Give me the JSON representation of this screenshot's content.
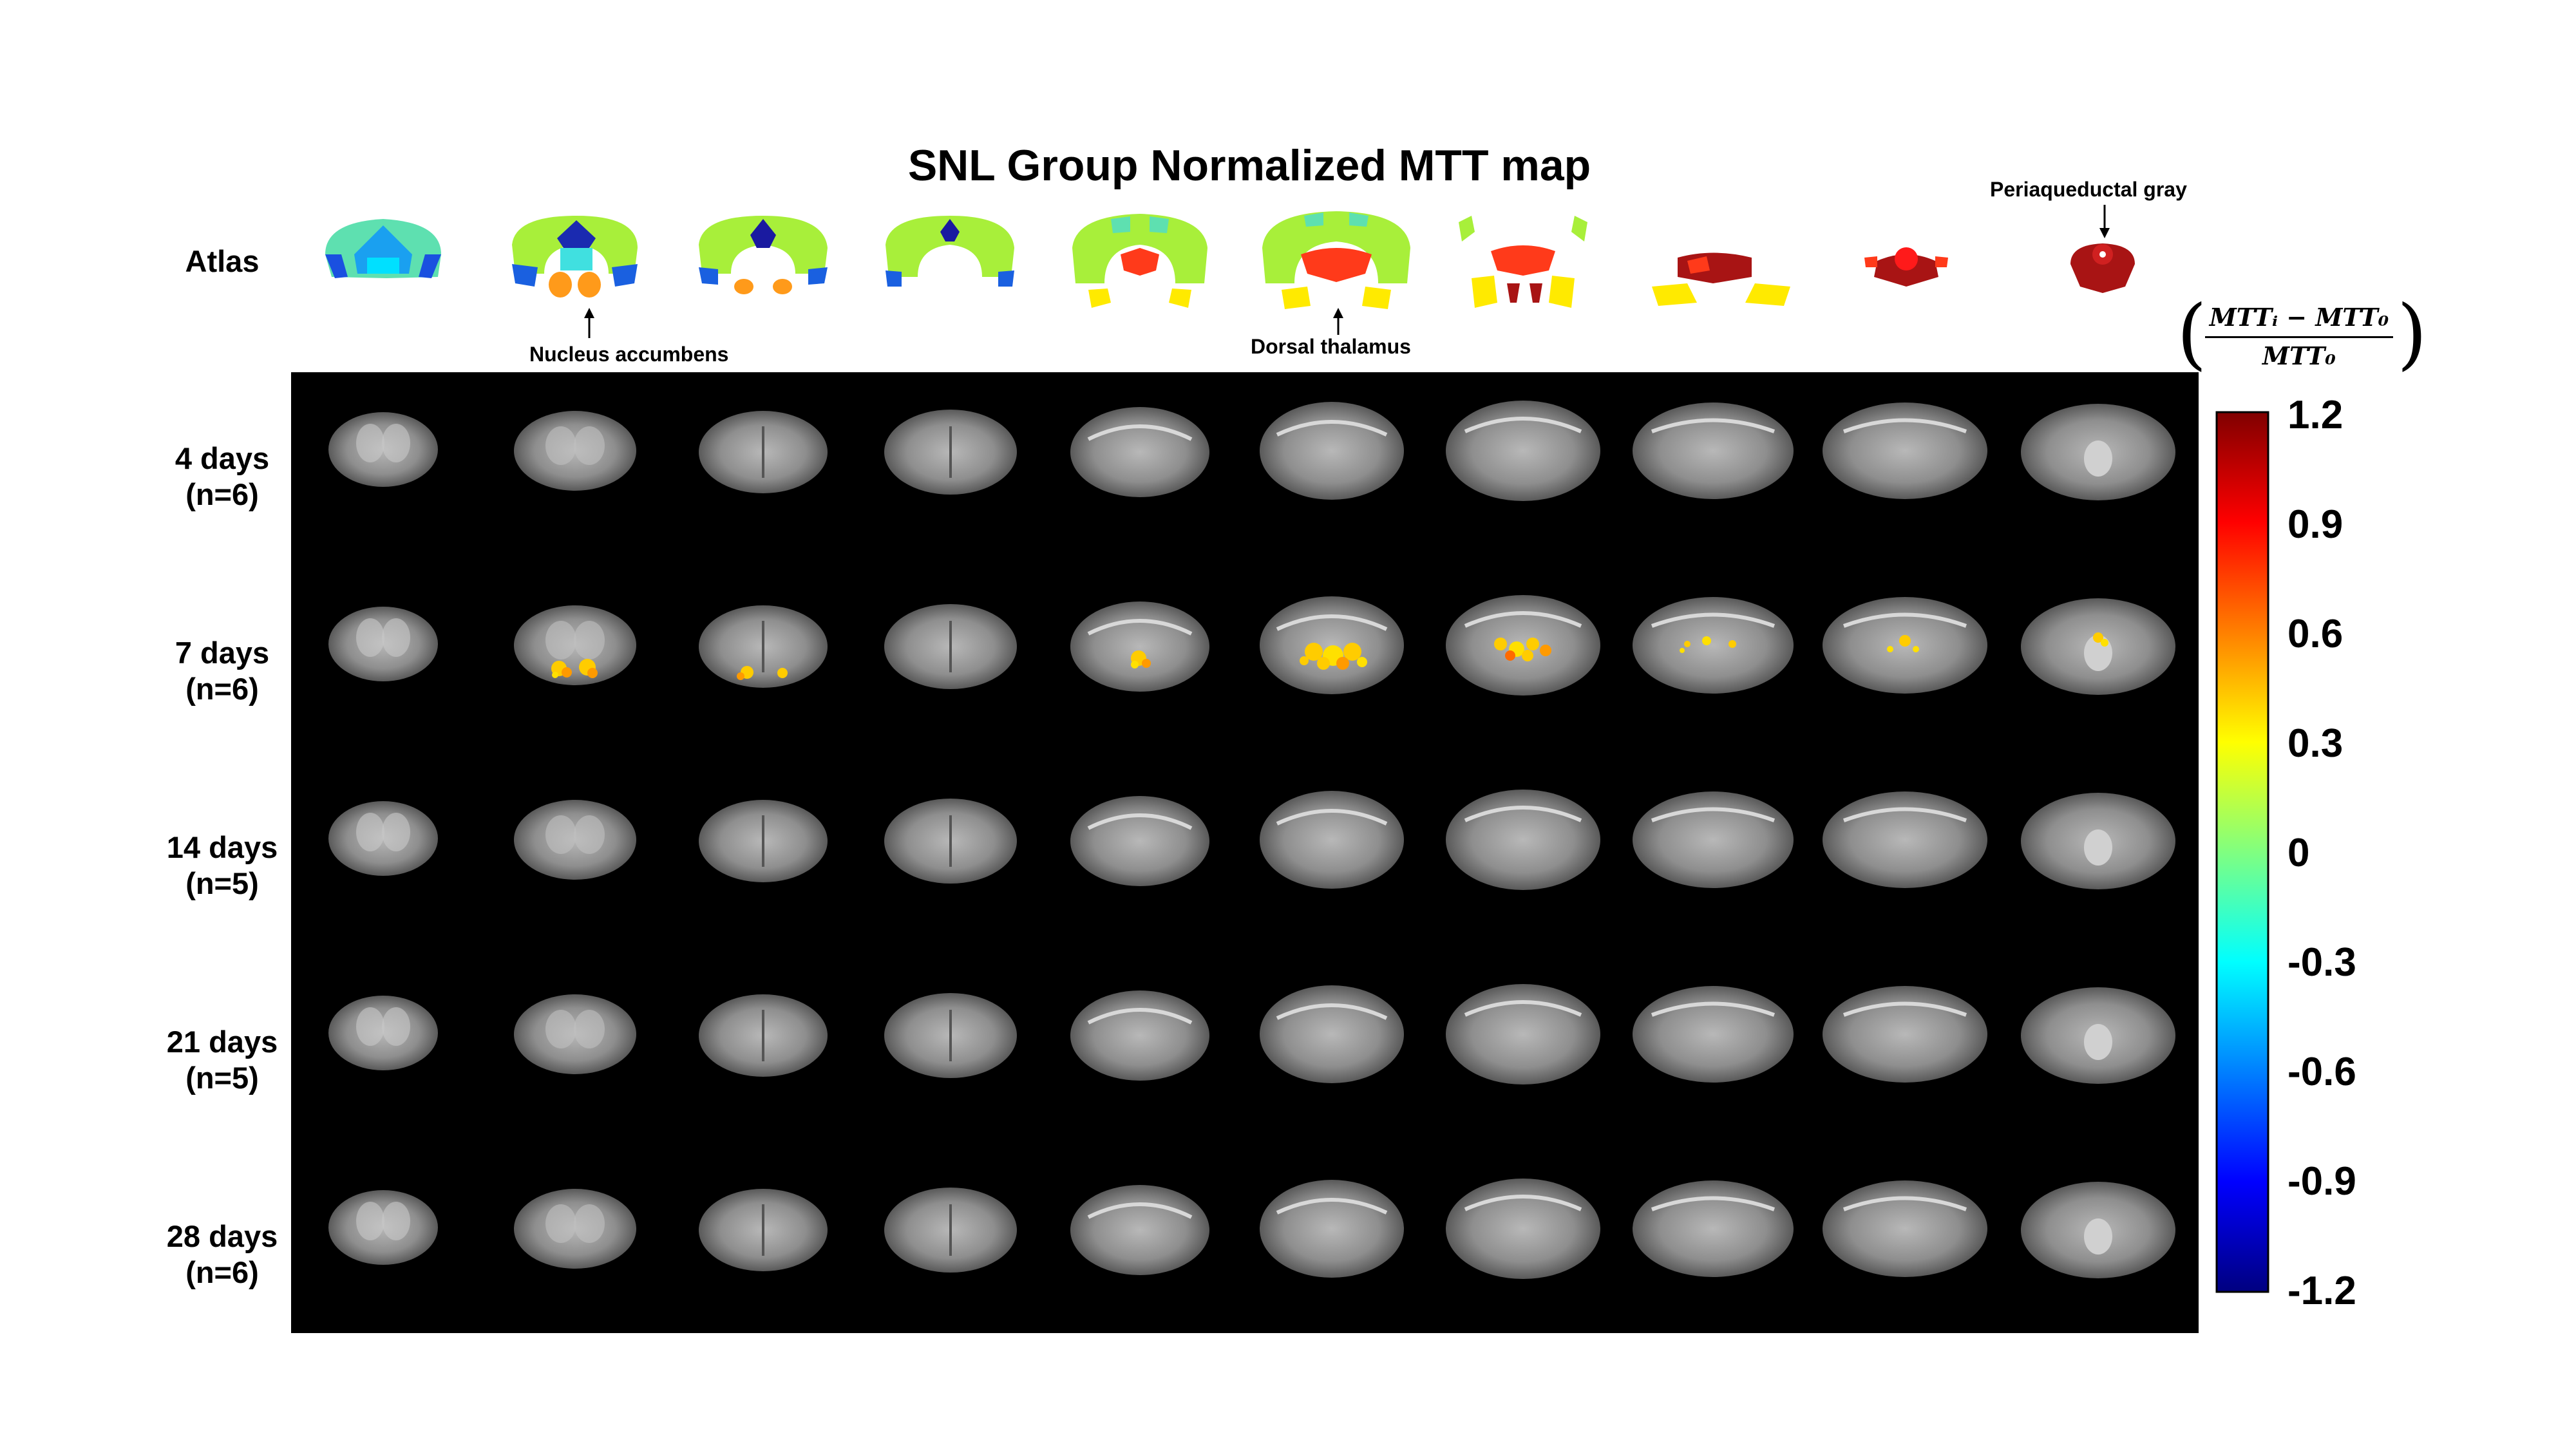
{
  "title": "SNL Group Normalized MTT map",
  "atlas_label": "Atlas",
  "row_labels": [
    {
      "days": "4 days",
      "n": "(n=6)"
    },
    {
      "days": "7 days",
      "n": "(n=6)"
    },
    {
      "days": "14 days",
      "n": "(n=5)"
    },
    {
      "days": "21 days",
      "n": "(n=5)"
    },
    {
      "days": "28 days",
      "n": "(n=6)"
    }
  ],
  "annotations": {
    "nucleus_accumbens": "Nucleus accumbens",
    "dorsal_thalamus": "Dorsal thalamus",
    "periaqueductal_gray": "Periaqueductal gray"
  },
  "colorbar": {
    "formula_numerator": "MTTᵢ − MTT₀",
    "formula_denominator": "MTT₀",
    "ticks": [
      "1.2",
      "0.9",
      "0.6",
      "0.3",
      "0",
      "-0.3",
      "-0.6",
      "-0.9",
      "-1.2"
    ],
    "colormap": "jet",
    "range": [
      -1.2,
      1.2
    ]
  },
  "colors": {
    "panel_background": "#000000",
    "accumbens": "#ff9a1a",
    "thalamus": "#ff3a1a",
    "pag": "#a81414",
    "cortex_green": "#a8ef3a",
    "cortex_cyan": "#5ee0b0",
    "dark_blue": "#1a1aa0"
  },
  "grid": {
    "rows": 5,
    "columns": 10
  }
}
